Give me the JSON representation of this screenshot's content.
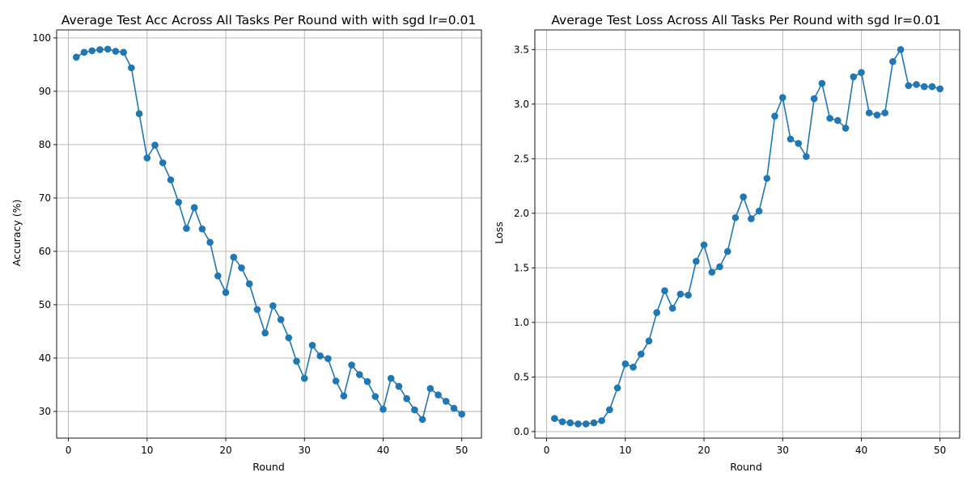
{
  "chart_data": [
    {
      "type": "line",
      "title": "Average Test Acc Across All Tasks Per Round with with sgd lr=0.01",
      "xlabel": "Round",
      "ylabel": "Accuracy (%)",
      "xlim": [
        -1.5,
        52.5
      ],
      "ylim": [
        25,
        101.5
      ],
      "xticks": [
        0,
        10,
        20,
        30,
        40,
        50
      ],
      "yticks": [
        30,
        40,
        50,
        60,
        70,
        80,
        90,
        100
      ],
      "grid": true,
      "marker": "circle",
      "color": "#1f77b4",
      "x": [
        1,
        2,
        3,
        4,
        5,
        6,
        7,
        8,
        9,
        10,
        11,
        12,
        13,
        14,
        15,
        16,
        17,
        18,
        19,
        20,
        21,
        22,
        23,
        24,
        25,
        26,
        27,
        28,
        29,
        30,
        31,
        32,
        33,
        34,
        35,
        36,
        37,
        38,
        39,
        40,
        41,
        42,
        43,
        44,
        45,
        46,
        47,
        48,
        49,
        50
      ],
      "y": [
        96.4,
        97.3,
        97.6,
        97.8,
        97.9,
        97.5,
        97.3,
        94.4,
        85.8,
        77.5,
        79.9,
        76.6,
        73.4,
        69.2,
        64.3,
        68.2,
        64.2,
        61.7,
        55.4,
        52.3,
        58.9,
        56.9,
        53.9,
        49.1,
        44.7,
        49.8,
        47.2,
        43.8,
        39.4,
        36.2,
        42.4,
        40.4,
        39.9,
        35.7,
        32.9,
        38.7,
        36.9,
        35.6,
        32.8,
        30.4,
        36.2,
        34.7,
        32.4,
        30.3,
        28.5,
        34.3,
        33.1,
        31.9,
        30.6,
        29.5
      ]
    },
    {
      "type": "line",
      "title": "Average Test Loss Across All Tasks Per Round with sgd lr=0.01",
      "xlabel": "Round",
      "ylabel": "Loss",
      "xlim": [
        -1.5,
        52.5
      ],
      "ylim": [
        -0.06,
        3.68
      ],
      "xticks": [
        0,
        10,
        20,
        30,
        40,
        50
      ],
      "yticks": [
        0.0,
        0.5,
        1.0,
        1.5,
        2.0,
        2.5,
        3.0,
        3.5
      ],
      "grid": true,
      "marker": "circle",
      "color": "#1f77b4",
      "x": [
        1,
        2,
        3,
        4,
        5,
        6,
        7,
        8,
        9,
        10,
        11,
        12,
        13,
        14,
        15,
        16,
        17,
        18,
        19,
        20,
        21,
        22,
        23,
        24,
        25,
        26,
        27,
        28,
        29,
        30,
        31,
        32,
        33,
        34,
        35,
        36,
        37,
        38,
        39,
        40,
        41,
        42,
        43,
        44,
        45,
        46,
        47,
        48,
        49,
        50
      ],
      "y": [
        0.12,
        0.09,
        0.08,
        0.07,
        0.07,
        0.08,
        0.1,
        0.2,
        0.4,
        0.62,
        0.59,
        0.71,
        0.83,
        1.09,
        1.29,
        1.13,
        1.26,
        1.25,
        1.56,
        1.71,
        1.46,
        1.51,
        1.65,
        1.96,
        2.15,
        1.95,
        2.02,
        2.32,
        2.89,
        3.06,
        2.68,
        2.64,
        2.52,
        3.05,
        3.19,
        2.87,
        2.85,
        2.78,
        3.25,
        3.29,
        2.92,
        2.9,
        2.92,
        3.39,
        3.5,
        3.17,
        3.18,
        3.16,
        3.16,
        3.14
      ]
    }
  ]
}
